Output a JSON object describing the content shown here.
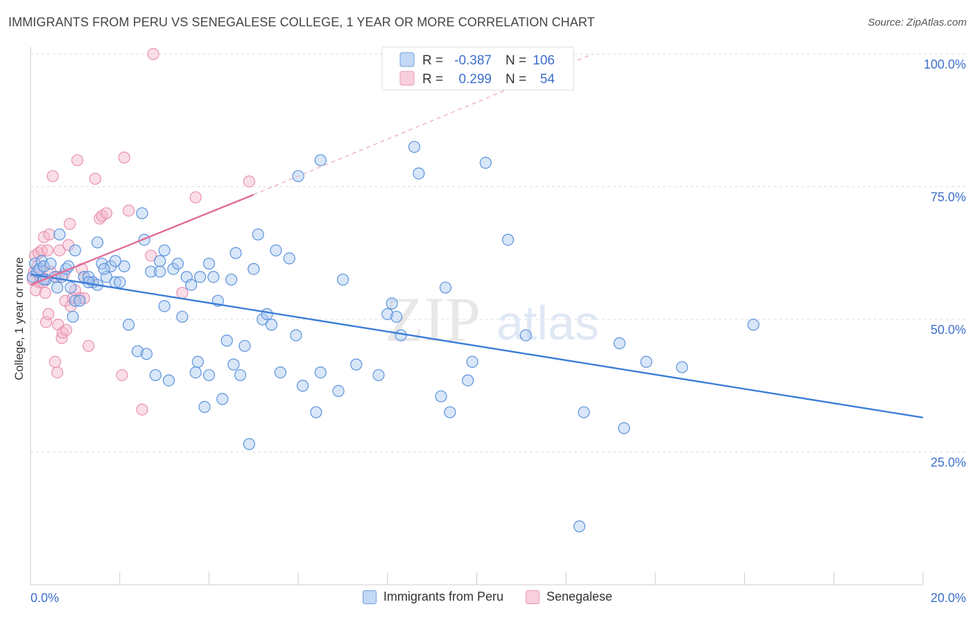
{
  "title": "IMMIGRANTS FROM PERU VS SENEGALESE COLLEGE, 1 YEAR OR MORE CORRELATION CHART",
  "source": "Source: ZipAtlas.com",
  "watermark": {
    "zip": "ZIP",
    "atlas": "atlas"
  },
  "colors": {
    "blue": "#3b7dd8",
    "blue_fill": "#a9c8f0",
    "pink": "#e26b96",
    "pink_fill": "#f4b6ca",
    "axis_label": "#3d6fcc",
    "grid": "#dddddd"
  },
  "legend_top": [
    {
      "r_label": "R =",
      "r_value": "-0.387",
      "n_label": "N =",
      "n_value": "106"
    },
    {
      "r_label": "R =",
      "r_value": "0.299",
      "n_label": "N =",
      "n_value": "54"
    }
  ],
  "chart_data": {
    "type": "scatter",
    "title": "IMMIGRANTS FROM PERU VS SENEGALESE COLLEGE, 1 YEAR OR MORE CORRELATION CHART",
    "xlabel": "",
    "ylabel": "College, 1 year or more",
    "xlim": [
      0,
      20
    ],
    "ylim": [
      0,
      100
    ],
    "x_ticks": [
      "0.0%",
      "20.0%"
    ],
    "y_ticks": [
      {
        "value": 25,
        "label": "25.0%"
      },
      {
        "value": 50,
        "label": "50.0%"
      },
      {
        "value": 75,
        "label": "75.0%"
      },
      {
        "value": 100,
        "label": "100.0%"
      }
    ],
    "grid": true,
    "legend_position": "bottom-center",
    "series": [
      {
        "name": "Immigrants from Peru",
        "color": "#3b7dd8",
        "trend": {
          "x": [
            0,
            20
          ],
          "y": [
            58.5,
            31.5
          ]
        },
        "points": [
          [
            0.05,
            58
          ],
          [
            0.1,
            60.5
          ],
          [
            0.15,
            59
          ],
          [
            0.2,
            59.5
          ],
          [
            0.25,
            61
          ],
          [
            0.3,
            60
          ],
          [
            0.35,
            57.5
          ],
          [
            0.45,
            60.5
          ],
          [
            0.55,
            58
          ],
          [
            0.6,
            56
          ],
          [
            0.7,
            58
          ],
          [
            0.8,
            59.5
          ],
          [
            0.9,
            56
          ],
          [
            1.0,
            63
          ],
          [
            1.0,
            53.5
          ],
          [
            1.1,
            53.5
          ],
          [
            1.2,
            58
          ],
          [
            1.3,
            58
          ],
          [
            1.4,
            57
          ],
          [
            1.5,
            56.5
          ],
          [
            1.6,
            60.5
          ],
          [
            1.7,
            58
          ],
          [
            1.8,
            60
          ],
          [
            1.9,
            57
          ],
          [
            2.0,
            57
          ],
          [
            2.1,
            60
          ],
          [
            2.2,
            49
          ],
          [
            2.4,
            44
          ],
          [
            2.5,
            70
          ],
          [
            2.55,
            65
          ],
          [
            2.6,
            43.5
          ],
          [
            2.7,
            59
          ],
          [
            2.8,
            39.5
          ],
          [
            2.9,
            61
          ],
          [
            3.0,
            52.5
          ],
          [
            3.0,
            63
          ],
          [
            3.1,
            38.5
          ],
          [
            3.2,
            59.5
          ],
          [
            3.3,
            60.5
          ],
          [
            3.4,
            50.5
          ],
          [
            3.5,
            58
          ],
          [
            3.6,
            56.5
          ],
          [
            3.7,
            40
          ],
          [
            3.75,
            42
          ],
          [
            3.8,
            58
          ],
          [
            3.9,
            33.5
          ],
          [
            4.0,
            39.5
          ],
          [
            4.0,
            60.5
          ],
          [
            4.1,
            58
          ],
          [
            4.2,
            53.5
          ],
          [
            4.3,
            35
          ],
          [
            4.4,
            46
          ],
          [
            4.5,
            57.5
          ],
          [
            4.6,
            62.5
          ],
          [
            4.7,
            39.5
          ],
          [
            4.8,
            45
          ],
          [
            4.9,
            26.5
          ],
          [
            5.0,
            59.5
          ],
          [
            5.1,
            66
          ],
          [
            5.2,
            50
          ],
          [
            5.3,
            51
          ],
          [
            5.4,
            49
          ],
          [
            5.5,
            63
          ],
          [
            5.6,
            40
          ],
          [
            5.8,
            61.5
          ],
          [
            5.95,
            47
          ],
          [
            6.0,
            77
          ],
          [
            6.1,
            37.5
          ],
          [
            6.4,
            32.5
          ],
          [
            6.5,
            40
          ],
          [
            6.5,
            80
          ],
          [
            6.9,
            36.5
          ],
          [
            7.0,
            57.5
          ],
          [
            7.3,
            41.5
          ],
          [
            7.8,
            39.5
          ],
          [
            8.0,
            51
          ],
          [
            8.1,
            53
          ],
          [
            8.2,
            50.5
          ],
          [
            8.3,
            47
          ],
          [
            8.6,
            82.5
          ],
          [
            8.7,
            77.5
          ],
          [
            9.2,
            35.5
          ],
          [
            9.3,
            56
          ],
          [
            9.4,
            32.5
          ],
          [
            9.8,
            38.5
          ],
          [
            9.9,
            42
          ],
          [
            10.2,
            79.5
          ],
          [
            10.7,
            65
          ],
          [
            11.1,
            47
          ],
          [
            12.3,
            11
          ],
          [
            12.4,
            32.5
          ],
          [
            13.2,
            45.5
          ],
          [
            13.3,
            29.5
          ],
          [
            13.8,
            42
          ],
          [
            14.6,
            41
          ],
          [
            16.2,
            49
          ],
          [
            0.65,
            66
          ],
          [
            1.5,
            64.5
          ],
          [
            1.9,
            61
          ],
          [
            0.3,
            57.5
          ],
          [
            1.3,
            57
          ],
          [
            0.85,
            60
          ],
          [
            0.95,
            50.5
          ],
          [
            1.65,
            59.5
          ],
          [
            2.9,
            59
          ],
          [
            4.55,
            41.5
          ]
        ]
      },
      {
        "name": "Senegalese",
        "color": "#e26b96",
        "trend": {
          "x": [
            0,
            5.0
          ],
          "y": [
            56.5,
            73.5
          ]
        },
        "trend_ext": {
          "x": [
            5.0,
            12.6
          ],
          "y": [
            73.5,
            100
          ]
        },
        "points": [
          [
            0.05,
            57.5
          ],
          [
            0.08,
            59
          ],
          [
            0.1,
            62
          ],
          [
            0.12,
            55.5
          ],
          [
            0.15,
            60
          ],
          [
            0.18,
            62.5
          ],
          [
            0.2,
            57
          ],
          [
            0.22,
            58
          ],
          [
            0.25,
            63
          ],
          [
            0.28,
            57
          ],
          [
            0.3,
            65.5
          ],
          [
            0.33,
            55
          ],
          [
            0.35,
            49.5
          ],
          [
            0.38,
            63
          ],
          [
            0.4,
            51
          ],
          [
            0.42,
            66
          ],
          [
            0.45,
            59
          ],
          [
            0.5,
            77
          ],
          [
            0.55,
            42
          ],
          [
            0.6,
            40
          ],
          [
            0.62,
            49
          ],
          [
            0.65,
            63
          ],
          [
            0.7,
            46.5
          ],
          [
            0.72,
            47.5
          ],
          [
            0.75,
            58.5
          ],
          [
            0.78,
            53.5
          ],
          [
            0.8,
            48
          ],
          [
            0.85,
            64
          ],
          [
            0.88,
            68
          ],
          [
            0.9,
            52.5
          ],
          [
            0.95,
            54
          ],
          [
            1.0,
            55.5
          ],
          [
            1.05,
            80
          ],
          [
            1.1,
            54
          ],
          [
            1.15,
            59.5
          ],
          [
            1.2,
            58
          ],
          [
            1.3,
            45
          ],
          [
            1.4,
            57
          ],
          [
            1.45,
            76.5
          ],
          [
            1.55,
            69
          ],
          [
            1.6,
            69.5
          ],
          [
            1.7,
            70
          ],
          [
            2.1,
            80.5
          ],
          [
            2.05,
            39.5
          ],
          [
            2.2,
            70.5
          ],
          [
            2.5,
            33
          ],
          [
            2.7,
            62
          ],
          [
            2.75,
            100
          ],
          [
            3.4,
            55
          ],
          [
            3.7,
            73
          ],
          [
            4.9,
            76
          ],
          [
            0.3,
            60
          ],
          [
            0.6,
            58
          ],
          [
            1.2,
            54
          ]
        ]
      }
    ]
  },
  "legend_bottom": [
    "Immigrants from Peru",
    "Senegalese"
  ]
}
